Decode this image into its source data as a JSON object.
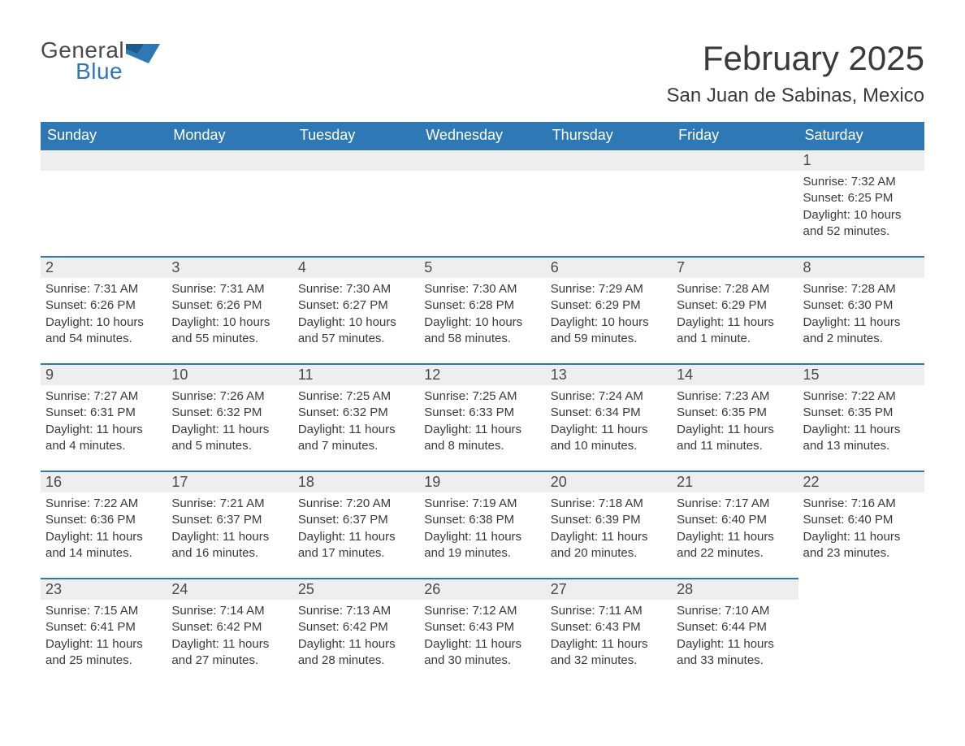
{
  "logo": {
    "general": "General",
    "blue": "Blue"
  },
  "title": "February 2025",
  "location": "San Juan de Sabinas, Mexico",
  "colors": {
    "header_bg": "#2e78b6",
    "header_text": "#ffffff",
    "daynum_bg": "#eeeeee",
    "daynum_border": "#2e78b6",
    "text": "#3a3a3a",
    "logo_gray": "#4a4a4a",
    "logo_blue": "#2e78b6",
    "background": "#ffffff"
  },
  "weekdays": [
    "Sunday",
    "Monday",
    "Tuesday",
    "Wednesday",
    "Thursday",
    "Friday",
    "Saturday"
  ],
  "weeks": [
    [
      null,
      null,
      null,
      null,
      null,
      null,
      {
        "n": "1",
        "sunrise": "Sunrise: 7:32 AM",
        "sunset": "Sunset: 6:25 PM",
        "daylight": "Daylight: 10 hours and 52 minutes."
      }
    ],
    [
      {
        "n": "2",
        "sunrise": "Sunrise: 7:31 AM",
        "sunset": "Sunset: 6:26 PM",
        "daylight": "Daylight: 10 hours and 54 minutes."
      },
      {
        "n": "3",
        "sunrise": "Sunrise: 7:31 AM",
        "sunset": "Sunset: 6:26 PM",
        "daylight": "Daylight: 10 hours and 55 minutes."
      },
      {
        "n": "4",
        "sunrise": "Sunrise: 7:30 AM",
        "sunset": "Sunset: 6:27 PM",
        "daylight": "Daylight: 10 hours and 57 minutes."
      },
      {
        "n": "5",
        "sunrise": "Sunrise: 7:30 AM",
        "sunset": "Sunset: 6:28 PM",
        "daylight": "Daylight: 10 hours and 58 minutes."
      },
      {
        "n": "6",
        "sunrise": "Sunrise: 7:29 AM",
        "sunset": "Sunset: 6:29 PM",
        "daylight": "Daylight: 10 hours and 59 minutes."
      },
      {
        "n": "7",
        "sunrise": "Sunrise: 7:28 AM",
        "sunset": "Sunset: 6:29 PM",
        "daylight": "Daylight: 11 hours and 1 minute."
      },
      {
        "n": "8",
        "sunrise": "Sunrise: 7:28 AM",
        "sunset": "Sunset: 6:30 PM",
        "daylight": "Daylight: 11 hours and 2 minutes."
      }
    ],
    [
      {
        "n": "9",
        "sunrise": "Sunrise: 7:27 AM",
        "sunset": "Sunset: 6:31 PM",
        "daylight": "Daylight: 11 hours and 4 minutes."
      },
      {
        "n": "10",
        "sunrise": "Sunrise: 7:26 AM",
        "sunset": "Sunset: 6:32 PM",
        "daylight": "Daylight: 11 hours and 5 minutes."
      },
      {
        "n": "11",
        "sunrise": "Sunrise: 7:25 AM",
        "sunset": "Sunset: 6:32 PM",
        "daylight": "Daylight: 11 hours and 7 minutes."
      },
      {
        "n": "12",
        "sunrise": "Sunrise: 7:25 AM",
        "sunset": "Sunset: 6:33 PM",
        "daylight": "Daylight: 11 hours and 8 minutes."
      },
      {
        "n": "13",
        "sunrise": "Sunrise: 7:24 AM",
        "sunset": "Sunset: 6:34 PM",
        "daylight": "Daylight: 11 hours and 10 minutes."
      },
      {
        "n": "14",
        "sunrise": "Sunrise: 7:23 AM",
        "sunset": "Sunset: 6:35 PM",
        "daylight": "Daylight: 11 hours and 11 minutes."
      },
      {
        "n": "15",
        "sunrise": "Sunrise: 7:22 AM",
        "sunset": "Sunset: 6:35 PM",
        "daylight": "Daylight: 11 hours and 13 minutes."
      }
    ],
    [
      {
        "n": "16",
        "sunrise": "Sunrise: 7:22 AM",
        "sunset": "Sunset: 6:36 PM",
        "daylight": "Daylight: 11 hours and 14 minutes."
      },
      {
        "n": "17",
        "sunrise": "Sunrise: 7:21 AM",
        "sunset": "Sunset: 6:37 PM",
        "daylight": "Daylight: 11 hours and 16 minutes."
      },
      {
        "n": "18",
        "sunrise": "Sunrise: 7:20 AM",
        "sunset": "Sunset: 6:37 PM",
        "daylight": "Daylight: 11 hours and 17 minutes."
      },
      {
        "n": "19",
        "sunrise": "Sunrise: 7:19 AM",
        "sunset": "Sunset: 6:38 PM",
        "daylight": "Daylight: 11 hours and 19 minutes."
      },
      {
        "n": "20",
        "sunrise": "Sunrise: 7:18 AM",
        "sunset": "Sunset: 6:39 PM",
        "daylight": "Daylight: 11 hours and 20 minutes."
      },
      {
        "n": "21",
        "sunrise": "Sunrise: 7:17 AM",
        "sunset": "Sunset: 6:40 PM",
        "daylight": "Daylight: 11 hours and 22 minutes."
      },
      {
        "n": "22",
        "sunrise": "Sunrise: 7:16 AM",
        "sunset": "Sunset: 6:40 PM",
        "daylight": "Daylight: 11 hours and 23 minutes."
      }
    ],
    [
      {
        "n": "23",
        "sunrise": "Sunrise: 7:15 AM",
        "sunset": "Sunset: 6:41 PM",
        "daylight": "Daylight: 11 hours and 25 minutes."
      },
      {
        "n": "24",
        "sunrise": "Sunrise: 7:14 AM",
        "sunset": "Sunset: 6:42 PM",
        "daylight": "Daylight: 11 hours and 27 minutes."
      },
      {
        "n": "25",
        "sunrise": "Sunrise: 7:13 AM",
        "sunset": "Sunset: 6:42 PM",
        "daylight": "Daylight: 11 hours and 28 minutes."
      },
      {
        "n": "26",
        "sunrise": "Sunrise: 7:12 AM",
        "sunset": "Sunset: 6:43 PM",
        "daylight": "Daylight: 11 hours and 30 minutes."
      },
      {
        "n": "27",
        "sunrise": "Sunrise: 7:11 AM",
        "sunset": "Sunset: 6:43 PM",
        "daylight": "Daylight: 11 hours and 32 minutes."
      },
      {
        "n": "28",
        "sunrise": "Sunrise: 7:10 AM",
        "sunset": "Sunset: 6:44 PM",
        "daylight": "Daylight: 11 hours and 33 minutes."
      },
      null
    ]
  ]
}
